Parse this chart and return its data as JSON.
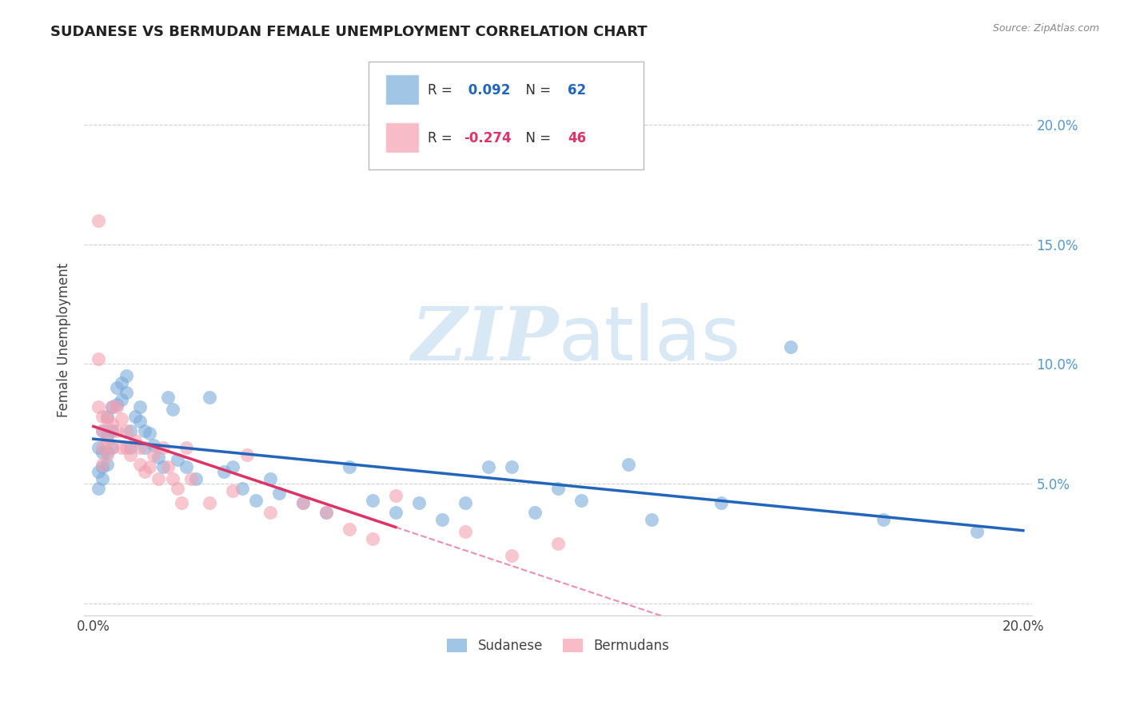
{
  "title": "SUDANESE VS BERMUDAN FEMALE UNEMPLOYMENT CORRELATION CHART",
  "source": "Source: ZipAtlas.com",
  "ylabel": "Female Unemployment",
  "xlim": [
    -0.002,
    0.202
  ],
  "ylim": [
    -0.005,
    0.225
  ],
  "xticks": [
    0.0,
    0.05,
    0.1,
    0.15,
    0.2
  ],
  "xtick_labels": [
    "0.0%",
    "",
    "",
    "",
    "20.0%"
  ],
  "ytick_right": [
    0.05,
    0.1,
    0.15,
    0.2
  ],
  "ytick_right_labels": [
    "5.0%",
    "10.0%",
    "15.0%",
    "20.0%"
  ],
  "sudanese_color": "#7aaddb",
  "bermudans_color": "#f4a0b0",
  "line_blue": "#2266bb",
  "line_pink": "#dd3366",
  "sudanese_R": 0.092,
  "sudanese_N": 62,
  "bermudans_R": -0.274,
  "bermudans_N": 46,
  "sudanese_x": [
    0.001,
    0.001,
    0.001,
    0.002,
    0.002,
    0.002,
    0.002,
    0.003,
    0.003,
    0.003,
    0.003,
    0.004,
    0.004,
    0.004,
    0.005,
    0.005,
    0.006,
    0.006,
    0.007,
    0.007,
    0.008,
    0.008,
    0.009,
    0.01,
    0.01,
    0.011,
    0.011,
    0.012,
    0.013,
    0.014,
    0.015,
    0.016,
    0.017,
    0.018,
    0.02,
    0.022,
    0.025,
    0.028,
    0.03,
    0.032,
    0.035,
    0.038,
    0.04,
    0.045,
    0.05,
    0.055,
    0.06,
    0.065,
    0.07,
    0.075,
    0.08,
    0.085,
    0.09,
    0.095,
    0.1,
    0.105,
    0.115,
    0.12,
    0.135,
    0.15,
    0.17,
    0.19
  ],
  "sudanese_y": [
    0.065,
    0.055,
    0.048,
    0.072,
    0.063,
    0.057,
    0.052,
    0.078,
    0.07,
    0.063,
    0.058,
    0.082,
    0.072,
    0.065,
    0.09,
    0.083,
    0.092,
    0.085,
    0.095,
    0.088,
    0.072,
    0.065,
    0.078,
    0.082,
    0.076,
    0.072,
    0.065,
    0.071,
    0.066,
    0.061,
    0.057,
    0.086,
    0.081,
    0.06,
    0.057,
    0.052,
    0.086,
    0.055,
    0.057,
    0.048,
    0.043,
    0.052,
    0.046,
    0.042,
    0.038,
    0.057,
    0.043,
    0.038,
    0.042,
    0.035,
    0.042,
    0.057,
    0.057,
    0.038,
    0.048,
    0.043,
    0.058,
    0.035,
    0.042,
    0.107,
    0.035,
    0.03
  ],
  "bermudans_x": [
    0.001,
    0.001,
    0.001,
    0.002,
    0.002,
    0.002,
    0.002,
    0.003,
    0.003,
    0.003,
    0.004,
    0.004,
    0.004,
    0.005,
    0.005,
    0.006,
    0.006,
    0.007,
    0.007,
    0.008,
    0.009,
    0.01,
    0.01,
    0.011,
    0.012,
    0.013,
    0.014,
    0.015,
    0.016,
    0.017,
    0.018,
    0.019,
    0.02,
    0.021,
    0.025,
    0.03,
    0.033,
    0.038,
    0.045,
    0.05,
    0.055,
    0.06,
    0.065,
    0.08,
    0.09,
    0.1
  ],
  "bermudans_y": [
    0.16,
    0.102,
    0.082,
    0.078,
    0.072,
    0.065,
    0.058,
    0.077,
    0.068,
    0.062,
    0.082,
    0.075,
    0.065,
    0.082,
    0.072,
    0.077,
    0.065,
    0.072,
    0.065,
    0.062,
    0.068,
    0.065,
    0.058,
    0.055,
    0.057,
    0.062,
    0.052,
    0.065,
    0.057,
    0.052,
    0.048,
    0.042,
    0.065,
    0.052,
    0.042,
    0.047,
    0.062,
    0.038,
    0.042,
    0.038,
    0.031,
    0.027,
    0.045,
    0.03,
    0.02,
    0.025
  ],
  "grid_color": "#cccccc",
  "spine_color": "#cccccc",
  "right_tick_color": "#5599cc",
  "watermark_color": "#d8e8f4"
}
